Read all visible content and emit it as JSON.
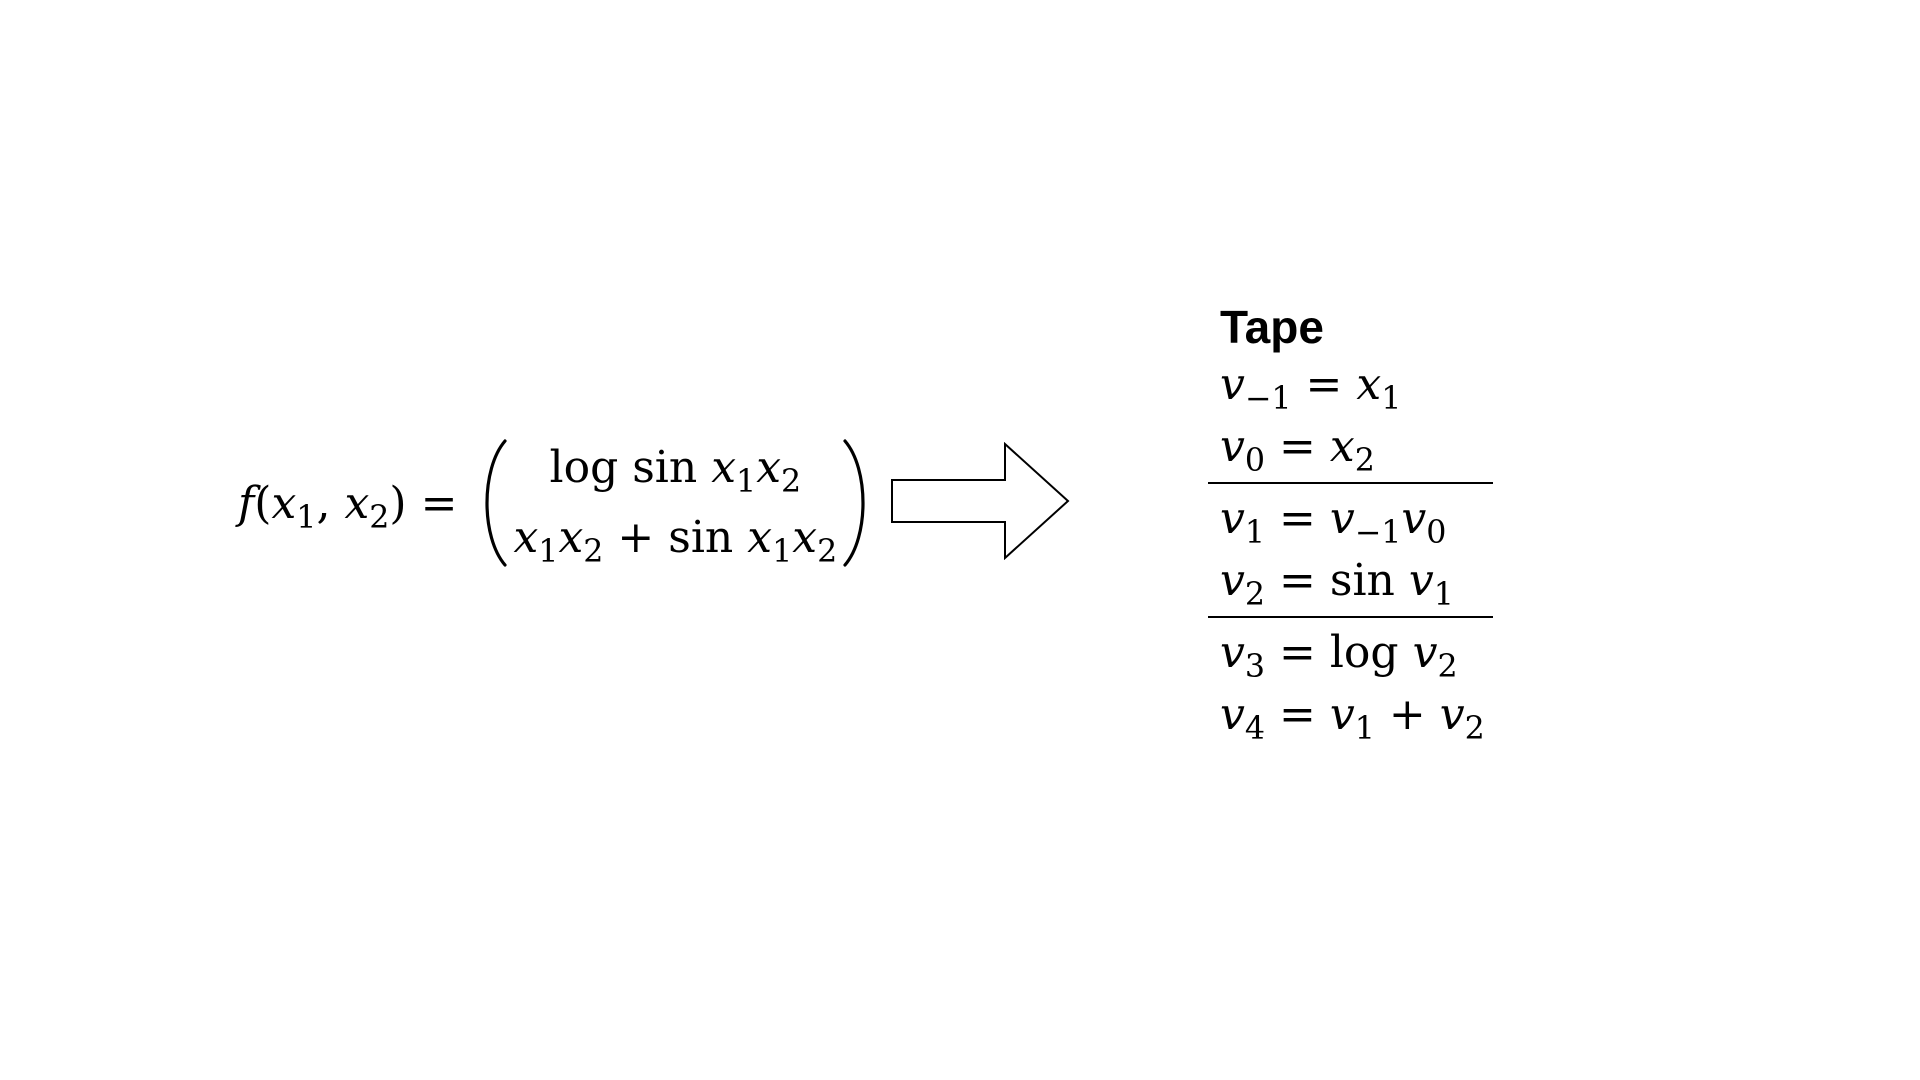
{
  "function": {
    "name": "f",
    "args": [
      "x1",
      "x2"
    ],
    "components": [
      "log sin x1x2",
      "x1x2 + sin x1x2"
    ]
  },
  "tape": {
    "title": "Tape",
    "groups": [
      [
        "v-1 = x1",
        "v0 = x2"
      ],
      [
        "v1 = v-1v0",
        "v2 = sin v1"
      ],
      [
        "v3 = log v2",
        "v4 = v1 + v2"
      ]
    ]
  }
}
